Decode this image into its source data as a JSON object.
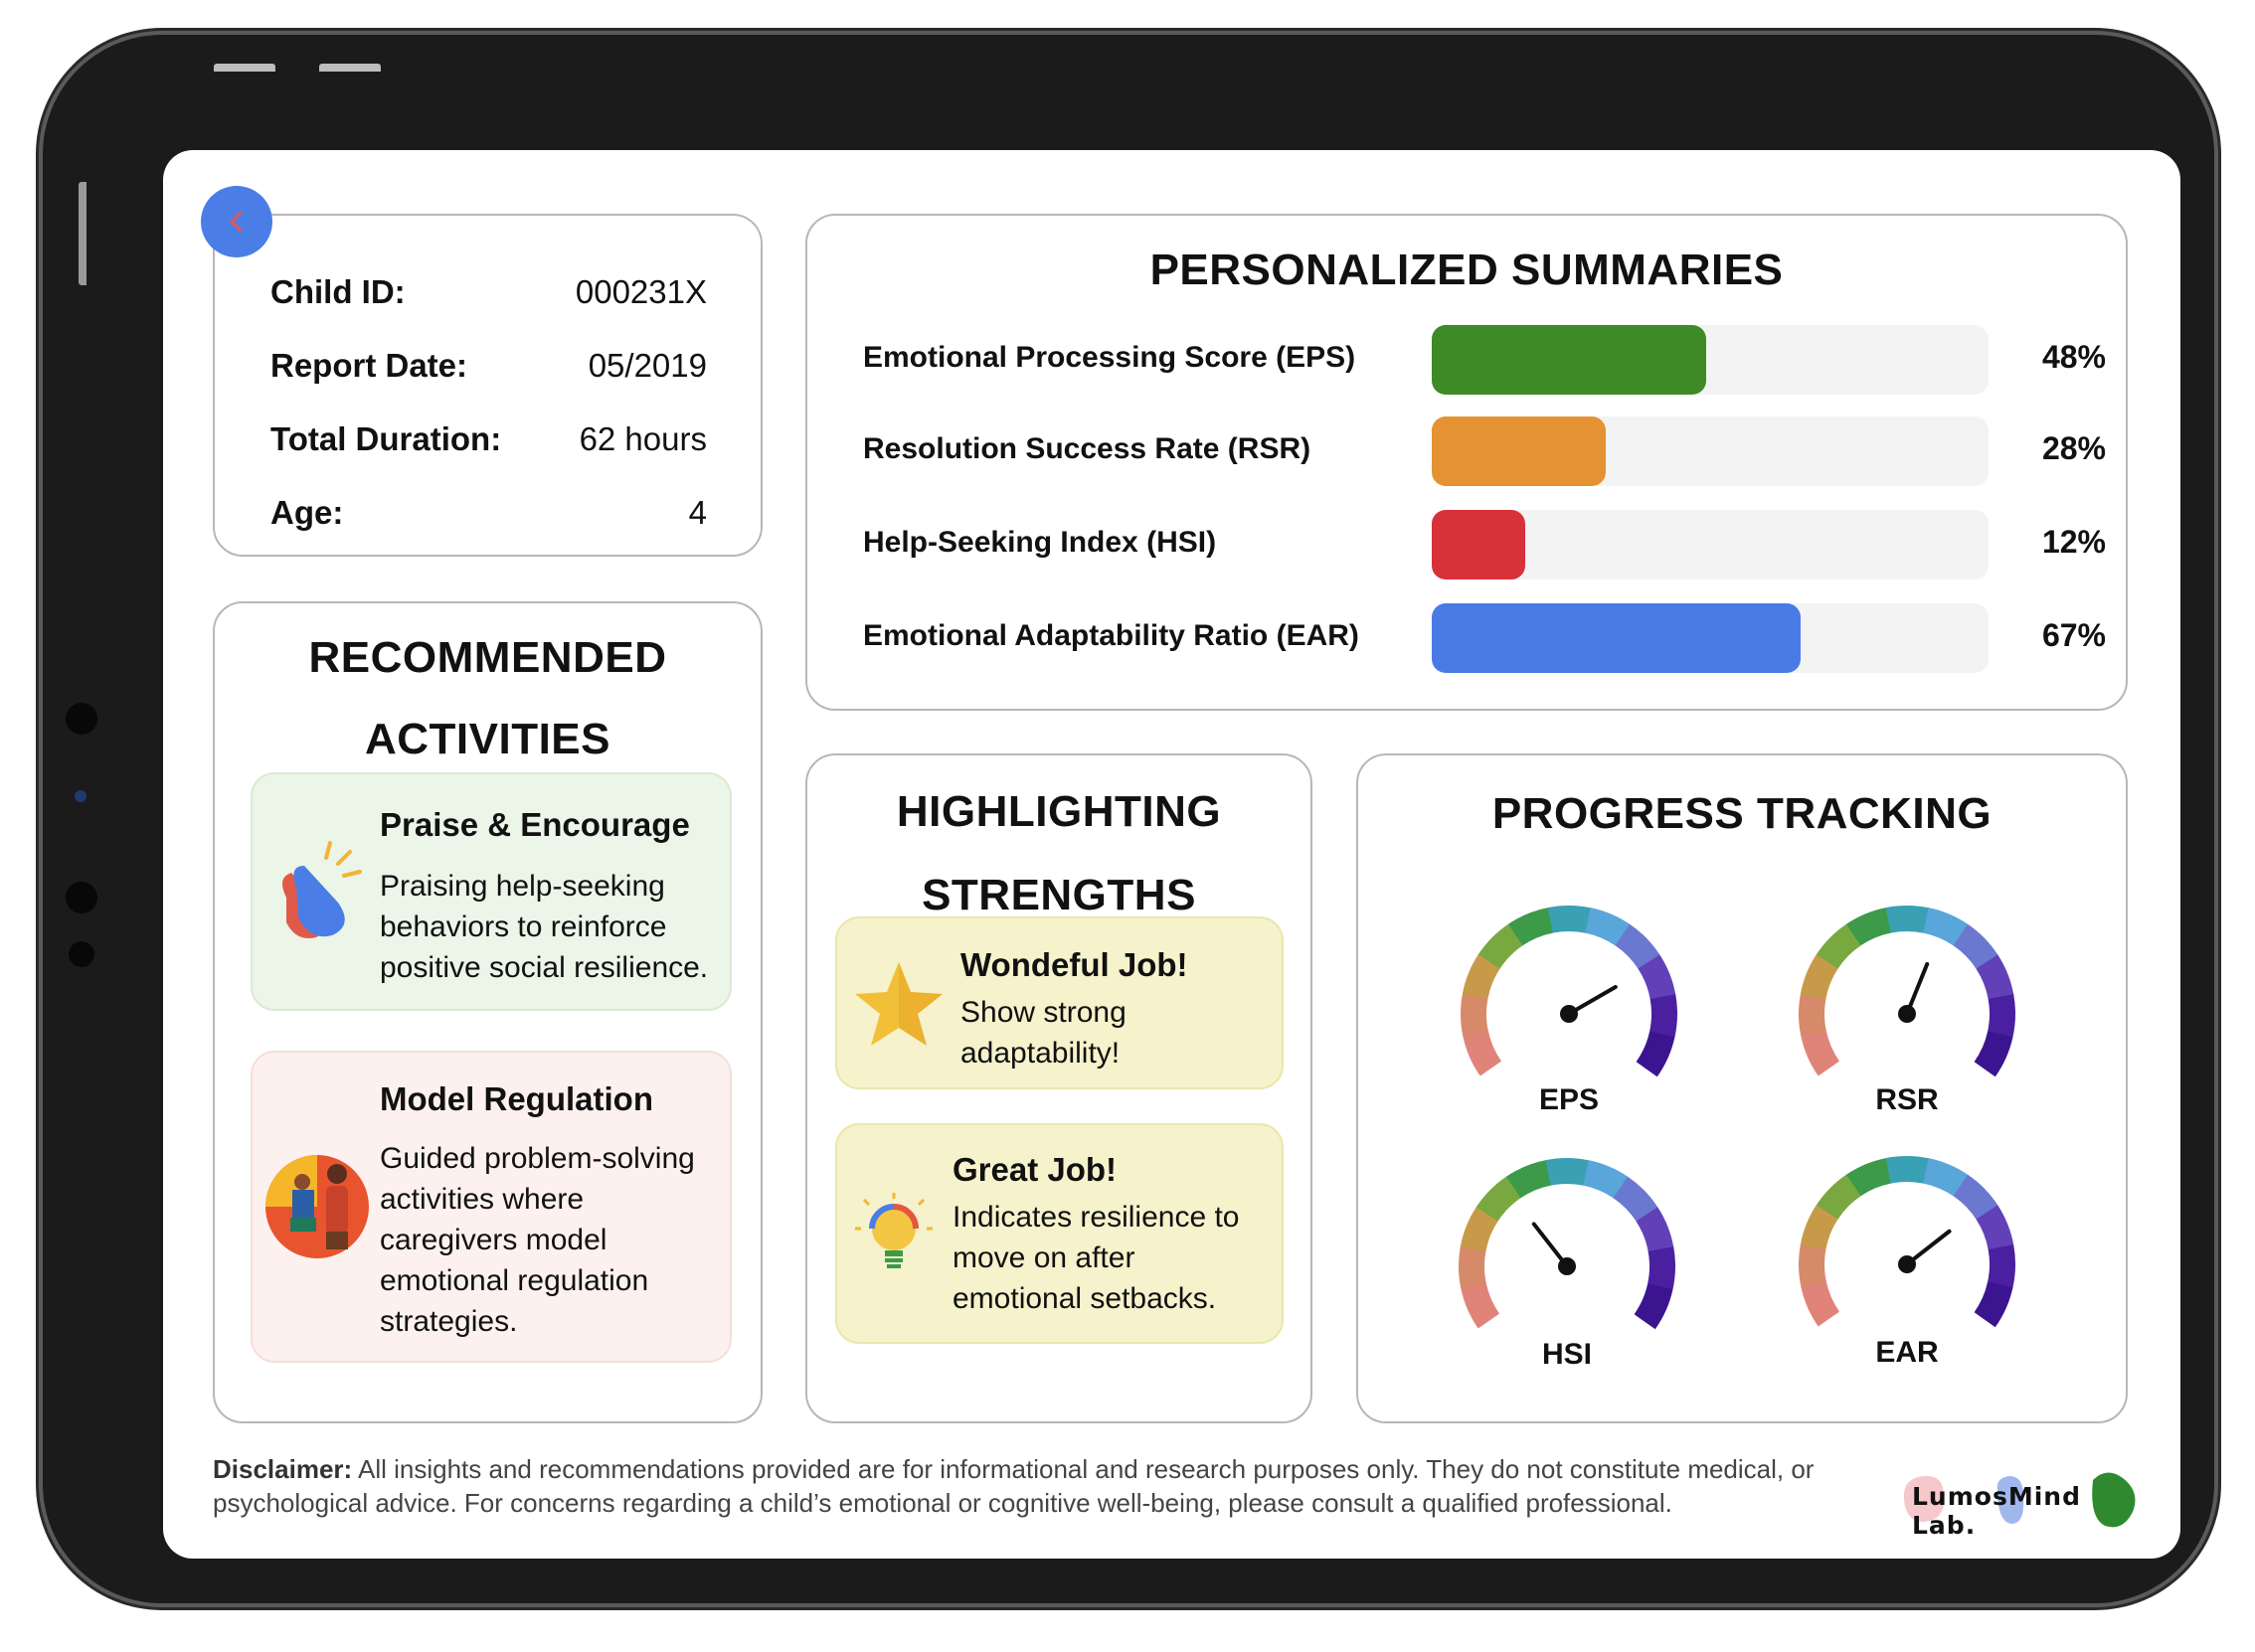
{
  "profile": {
    "rows": [
      {
        "label": "Child ID:",
        "value": "000231X"
      },
      {
        "label": "Report Date:",
        "value": "05/2019"
      },
      {
        "label": "Total Duration:",
        "value": "62 hours"
      },
      {
        "label": "Age:",
        "value": "4"
      }
    ]
  },
  "summaries": {
    "title": "PERSONALIZED SUMMARIES",
    "metrics": [
      {
        "label": "Emotional Processing Score (EPS)",
        "percent": 48,
        "percent_text": "48%",
        "color": "#3d8a27"
      },
      {
        "label": "Resolution Success Rate (RSR)",
        "percent": 28,
        "percent_text": "28%",
        "color": "#e59233"
      },
      {
        "label": "Help-Seeking Index (HSI)",
        "percent": 12,
        "percent_text": "12%",
        "color": "#d8313a"
      },
      {
        "label": "Emotional Adaptability Ratio (EAR)",
        "percent": 67,
        "percent_text": "67%",
        "color": "#4a7ae6"
      }
    ]
  },
  "recommended": {
    "title_line1": "RECOMMENDED",
    "title_line2": "ACTIVITIES",
    "activities": [
      {
        "title": "Praise & Encourage",
        "description": "Praising help-seeking behaviors to reinforce positive social resilience.",
        "icon": "clapping-hands-icon"
      },
      {
        "title": "Model Regulation",
        "description": "Guided problem-solving activities where caregivers model emotional regulation strategies.",
        "icon": "caregiver-child-icon"
      }
    ]
  },
  "strengths": {
    "title_line1": "HIGHLIGHTING",
    "title_line2": "STRENGTHS",
    "items": [
      {
        "title": "Wondeful Job!",
        "description": "Show strong adaptability!",
        "icon": "star-icon"
      },
      {
        "title": "Great Job!",
        "description": "Indicates resilience to move on after emotional setbacks.",
        "icon": "lightbulb-icon"
      }
    ]
  },
  "progress": {
    "title": "PROGRESS TRACKING",
    "gauges": [
      {
        "label": "EPS",
        "needle_angle_deg": 30
      },
      {
        "label": "RSR",
        "needle_angle_deg": 68
      },
      {
        "label": "HSI",
        "needle_angle_deg": 128
      },
      {
        "label": "EAR",
        "needle_angle_deg": 38
      }
    ]
  },
  "footer": {
    "disclaimer_label": "Disclaimer:",
    "disclaimer_text": " All insights and recommendations provided are for informational and research purposes only. They do not constitute medical, or psychological advice. For concerns regarding a child’s emotional or cognitive well-being, please consult a qualified professional.",
    "logo_text": "LumosMind Lab."
  },
  "colors": {
    "accent_blue": "#4a7ee6",
    "praise_bg": "#ebf5e8",
    "regulation_bg": "#fcf1ee",
    "strength_bg": "#f5f2cc"
  }
}
